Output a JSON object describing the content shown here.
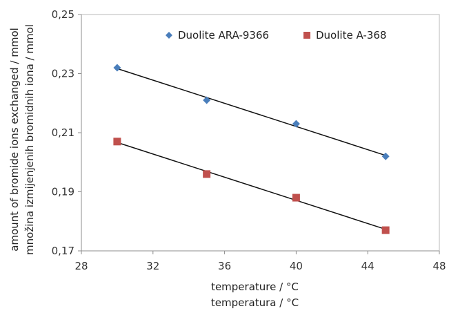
{
  "chart_data": {
    "type": "scatter",
    "x_axis": {
      "labels": [
        "temperature / °C",
        "temperatura / °C"
      ],
      "range": [
        28,
        48
      ],
      "ticks": [
        28,
        32,
        36,
        40,
        44,
        48
      ],
      "tick_labels": [
        "28",
        "32",
        "36",
        "40",
        "44",
        "48"
      ]
    },
    "y_axis": {
      "labels": [
        "amount of bromide ions exchanged / mmol",
        "množina izmijenjenih bromidnih iona / mmol"
      ],
      "range": [
        0.17,
        0.25
      ],
      "ticks": [
        0.17,
        0.19,
        0.21,
        0.23,
        0.25
      ],
      "tick_labels": [
        "0,17",
        "0,19",
        "0,21",
        "0,23",
        "0,25"
      ]
    },
    "grid": false,
    "legend_position": "top",
    "series": [
      {
        "name": "Duolite ARA-9366",
        "marker": "diamond",
        "color": "#4a7ebb",
        "x": [
          30,
          35,
          40,
          45
        ],
        "y": [
          0.232,
          0.221,
          0.213,
          0.202
        ],
        "trendline": true
      },
      {
        "name": "Duolite A-368",
        "marker": "square",
        "color": "#c0504d",
        "x": [
          30,
          35,
          40,
          45
        ],
        "y": [
          0.207,
          0.196,
          0.188,
          0.177
        ],
        "trendline": true
      }
    ]
  }
}
